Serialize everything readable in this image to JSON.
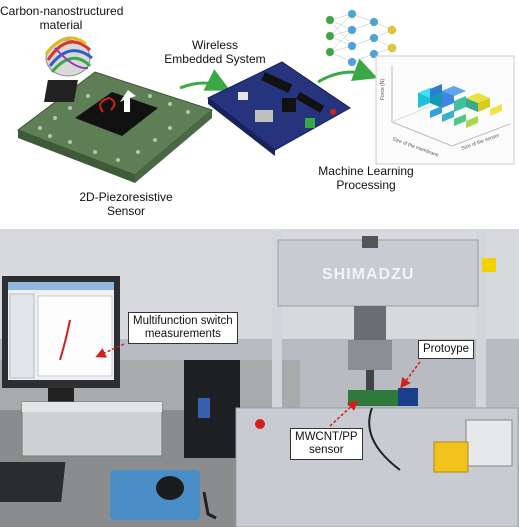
{
  "top": {
    "material_label_line1": "Carbon-nanostructured",
    "material_label_line2": "material",
    "wireless_line1": "Wireless",
    "wireless_line2": "Embedded System",
    "sensor_line1": "2D-Piezoresistive",
    "sensor_line2": "Sensor",
    "ml_line1": "Machine Learning",
    "ml_line2": "Processing",
    "chart_xlabel": "Size of the membrane",
    "chart_ylabel": "Size of the sensor",
    "chart_zlabel": "Force (N)"
  },
  "bottom": {
    "monitor_callout_line1": "Multifunction switch",
    "monitor_callout_line2": "measurements",
    "prototype_callout": "Protoype",
    "sensor_callout_line1": "MWCNT/PP",
    "sensor_callout_line2": "sensor",
    "machine_brand": "SHIMADZU"
  },
  "colors": {
    "arrow_green": "#3aa845",
    "pcb_green": "#5e7f55",
    "board_blue": "#26347e",
    "callout_red": "#d4201c",
    "machine_grey": "#c9cbd2"
  }
}
